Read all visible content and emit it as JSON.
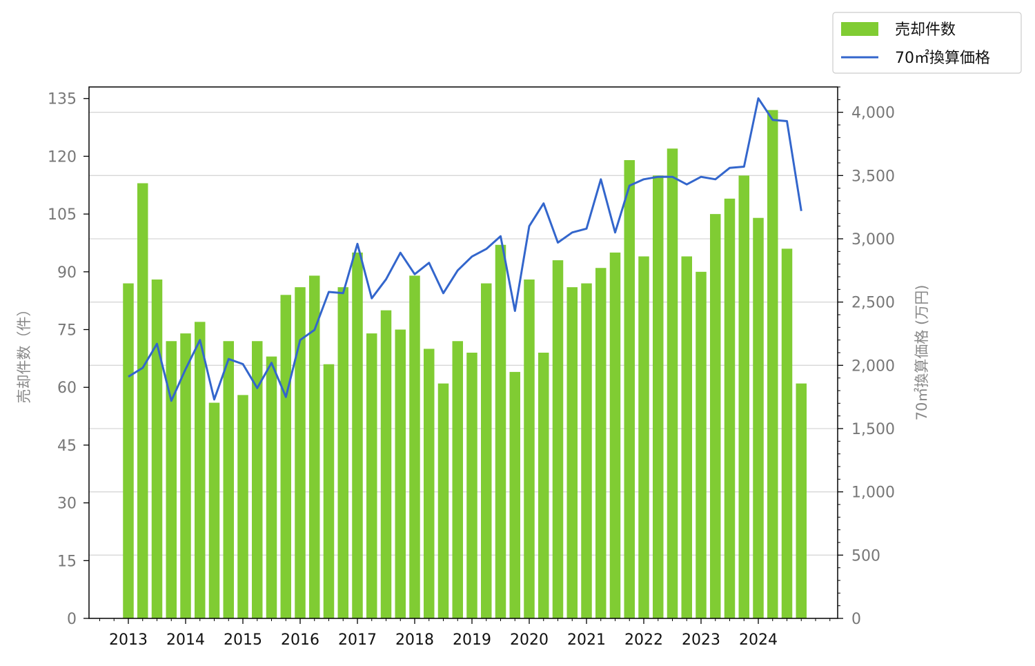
{
  "chart_data": {
    "type": "bar+line",
    "x_tick_labels": [
      "2013",
      "2014",
      "2015",
      "2016",
      "2017",
      "2018",
      "2019",
      "2020",
      "2021",
      "2022",
      "2023",
      "2024"
    ],
    "periods": [
      "2013Q1",
      "2013Q2",
      "2013Q3",
      "2013Q4",
      "2014Q1",
      "2014Q2",
      "2014Q3",
      "2014Q4",
      "2015Q1",
      "2015Q2",
      "2015Q3",
      "2015Q4",
      "2016Q1",
      "2016Q2",
      "2016Q3",
      "2016Q4",
      "2017Q1",
      "2017Q2",
      "2017Q3",
      "2017Q4",
      "2018Q1",
      "2018Q2",
      "2018Q3",
      "2018Q4",
      "2019Q1",
      "2019Q2",
      "2019Q3",
      "2019Q4",
      "2020Q1",
      "2020Q2",
      "2020Q3",
      "2020Q4",
      "2021Q1",
      "2021Q2",
      "2021Q3",
      "2021Q4",
      "2022Q1",
      "2022Q2",
      "2022Q3",
      "2022Q4",
      "2023Q1",
      "2023Q2",
      "2023Q3",
      "2023Q4",
      "2024Q1",
      "2024Q2",
      "2024Q3",
      "2024Q4"
    ],
    "series": [
      {
        "name": "売却件数",
        "kind": "bar",
        "axis": "left",
        "color": "#80cc33",
        "values": [
          87,
          113,
          88,
          72,
          74,
          77,
          56,
          72,
          58,
          72,
          68,
          84,
          86,
          89,
          66,
          86,
          95,
          74,
          80,
          75,
          89,
          70,
          61,
          72,
          69,
          87,
          97,
          64,
          88,
          69,
          93,
          86,
          87,
          91,
          95,
          119,
          94,
          115,
          122,
          94,
          90,
          105,
          109,
          115,
          104,
          132,
          96,
          61
        ]
      },
      {
        "name": "70㎡換算価格",
        "kind": "line",
        "axis": "right",
        "color": "#3366cc",
        "values": [
          1910,
          1980,
          2170,
          1720,
          1970,
          2200,
          1730,
          2050,
          2010,
          1820,
          2020,
          1750,
          2200,
          2280,
          2580,
          2570,
          2960,
          2530,
          2680,
          2890,
          2720,
          2810,
          2570,
          2750,
          2860,
          2920,
          3020,
          2430,
          3100,
          3280,
          2970,
          3050,
          3080,
          3470,
          3050,
          3420,
          3470,
          3490,
          3490,
          3430,
          3490,
          3470,
          3560,
          3570,
          4110,
          3940,
          3930,
          3220
        ]
      }
    ],
    "left_axis": {
      "label": "売却件数（件）",
      "ylim": [
        0,
        138
      ],
      "ticks": [
        0,
        15,
        30,
        45,
        60,
        75,
        90,
        105,
        120,
        135
      ]
    },
    "right_axis": {
      "label": "70㎡換算価格 (万円)",
      "ylim": [
        0,
        4200
      ],
      "ticks": [
        0,
        500,
        1000,
        1500,
        2000,
        2500,
        3000,
        3500,
        4000
      ]
    },
    "legend_position": "top-right-outside",
    "grid": "horizontal, right axis"
  }
}
